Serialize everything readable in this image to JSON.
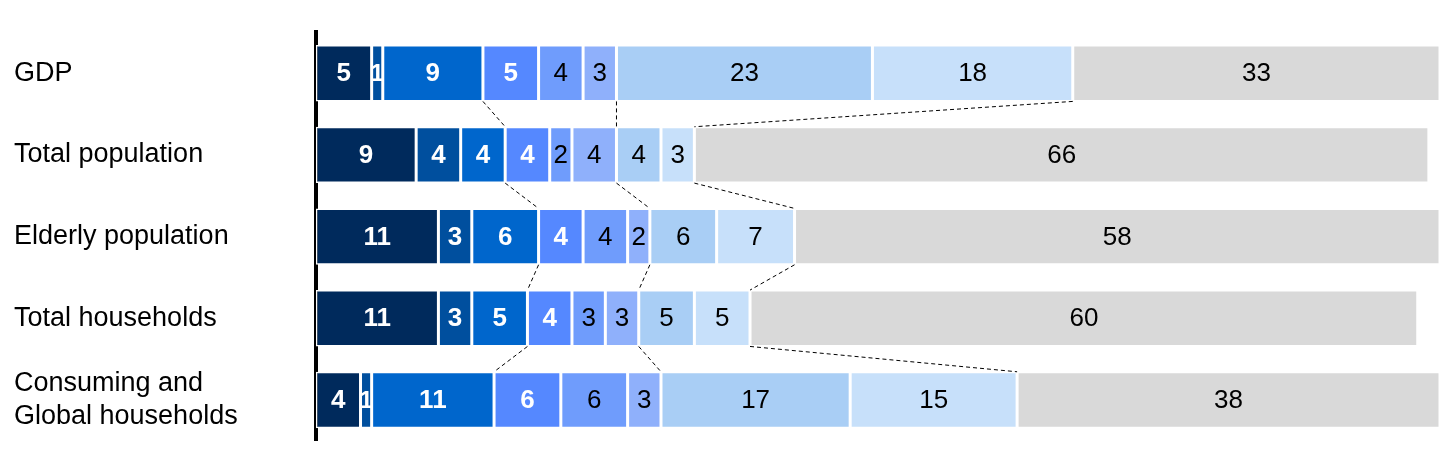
{
  "chart_data": {
    "type": "bar",
    "orientation": "horizontal",
    "stacked": true,
    "data_labels": true,
    "tick_labels": "y",
    "categories": [
      "GDP",
      "Total population",
      "Elderly population",
      "Total households",
      "Consuming and Global households"
    ],
    "xlim": [
      0,
      101
    ],
    "series": [
      {
        "color": "#002a5c",
        "values": [
          5,
          9,
          11,
          11,
          4
        ]
      },
      {
        "color": "#004f9e",
        "values": [
          1,
          4,
          3,
          3,
          1
        ]
      },
      {
        "color": "#0066cc",
        "values": [
          9,
          4,
          6,
          5,
          11
        ]
      },
      {
        "color": "#5588ff",
        "values": [
          5,
          4,
          4,
          4,
          6
        ]
      },
      {
        "color": "#6f9cfc",
        "values": [
          4,
          2,
          4,
          3,
          6
        ]
      },
      {
        "color": "#8fb0fb",
        "values": [
          3,
          4,
          2,
          3,
          3
        ]
      },
      {
        "color": "#a9cef5",
        "values": [
          23,
          4,
          6,
          5,
          17
        ]
      },
      {
        "color": "#c7e0fa",
        "values": [
          18,
          3,
          7,
          5,
          15
        ]
      },
      {
        "color": "#d9d9d9",
        "values": [
          33,
          66,
          58,
          60,
          38
        ]
      }
    ]
  }
}
